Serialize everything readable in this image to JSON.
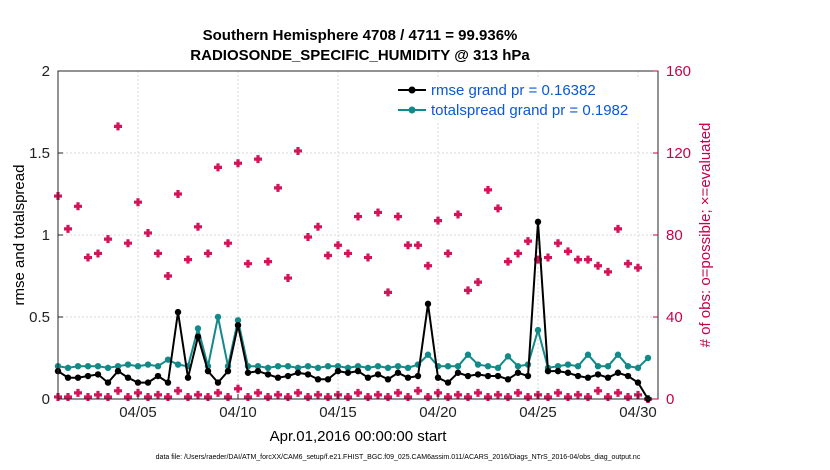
{
  "chart_data": {
    "type": "line",
    "title_line1": "Southern Hemisphere 4708 / 4711 = 99.936%",
    "title_line2": "RADIOSONDE_SPECIFIC_HUMIDITY @ 313 hPa",
    "xlabel": "Apr.01,2016 00:00:00 start",
    "ylabel_left": "rmse and totalspread",
    "ylabel_right": "# of obs: o=possible; ×=evaluated",
    "xlim": [
      1,
      31
    ],
    "ylim_left": [
      0,
      2
    ],
    "ylim_right": [
      0,
      160
    ],
    "x_ticks": [
      {
        "value": 5,
        "label": "04/05"
      },
      {
        "value": 10,
        "label": "04/10"
      },
      {
        "value": 15,
        "label": "04/15"
      },
      {
        "value": 20,
        "label": "04/20"
      },
      {
        "value": 25,
        "label": "04/25"
      },
      {
        "value": 30,
        "label": "04/30"
      }
    ],
    "y_ticks_left": [
      {
        "value": 0,
        "label": "0"
      },
      {
        "value": 0.5,
        "label": "0.5"
      },
      {
        "value": 1,
        "label": "1"
      },
      {
        "value": 1.5,
        "label": "1.5"
      },
      {
        "value": 2,
        "label": "2"
      }
    ],
    "y_ticks_right": [
      {
        "value": 0,
        "label": "0"
      },
      {
        "value": 40,
        "label": "40"
      },
      {
        "value": 80,
        "label": "80"
      },
      {
        "value": 120,
        "label": "120"
      },
      {
        "value": 160,
        "label": "160"
      }
    ],
    "grid": true,
    "legend_position": "top-right",
    "series": [
      {
        "name": "rmse grand pr = 0.16382",
        "color": "#000000",
        "axis": "left",
        "x": [
          1,
          1.5,
          2,
          2.5,
          3,
          3.5,
          4,
          4.5,
          5,
          5.5,
          6,
          6.5,
          7,
          7.5,
          8,
          8.5,
          9,
          9.5,
          10,
          10.5,
          11,
          11.5,
          12,
          12.5,
          13,
          13.5,
          14,
          14.5,
          15,
          15.5,
          16,
          16.5,
          17,
          17.5,
          18,
          18.5,
          19,
          19.5,
          20,
          20.5,
          21,
          21.5,
          22,
          22.5,
          23,
          23.5,
          24,
          24.5,
          25,
          25.5,
          26,
          26.5,
          27,
          27.5,
          28,
          28.5,
          29,
          29.5,
          30,
          30.5
        ],
        "values": [
          0.17,
          0.13,
          0.13,
          0.14,
          0.15,
          0.1,
          0.17,
          0.13,
          0.1,
          0.1,
          0.14,
          0.1,
          0.53,
          0.13,
          0.38,
          0.17,
          0.1,
          0.17,
          0.45,
          0.16,
          0.17,
          0.15,
          0.13,
          0.14,
          0.16,
          0.15,
          0.12,
          0.12,
          0.17,
          0.16,
          0.17,
          0.13,
          0.15,
          0.12,
          0.16,
          0.13,
          0.14,
          0.58,
          0.13,
          0.1,
          0.16,
          0.14,
          0.15,
          0.14,
          0.14,
          0.12,
          0.16,
          0.14,
          1.08,
          0.17,
          0.17,
          0.16,
          0.14,
          0.13,
          0.15,
          0.13,
          0.16,
          0.14,
          0.1,
          0.0
        ]
      },
      {
        "name": "totalspread grand pr = 0.1982",
        "color": "#138a8a",
        "axis": "left",
        "x": [
          1,
          1.5,
          2,
          2.5,
          3,
          3.5,
          4,
          4.5,
          5,
          5.5,
          6,
          6.5,
          7,
          7.5,
          8,
          8.5,
          9,
          9.5,
          10,
          10.5,
          11,
          11.5,
          12,
          12.5,
          13,
          13.5,
          14,
          14.5,
          15,
          15.5,
          16,
          16.5,
          17,
          17.5,
          18,
          18.5,
          19,
          19.5,
          20,
          20.5,
          21,
          21.5,
          22,
          22.5,
          23,
          23.5,
          24,
          24.5,
          25,
          25.5,
          26,
          26.5,
          27,
          27.5,
          28,
          28.5,
          29,
          29.5,
          30,
          30.5
        ],
        "values": [
          0.2,
          0.19,
          0.2,
          0.2,
          0.2,
          0.19,
          0.2,
          0.21,
          0.2,
          0.21,
          0.2,
          0.24,
          0.21,
          0.2,
          0.43,
          0.2,
          0.5,
          0.2,
          0.48,
          0.2,
          0.2,
          0.19,
          0.2,
          0.2,
          0.19,
          0.2,
          0.19,
          0.2,
          0.2,
          0.19,
          0.2,
          0.19,
          0.2,
          0.19,
          0.2,
          0.19,
          0.21,
          0.27,
          0.2,
          0.2,
          0.2,
          0.27,
          0.21,
          0.2,
          0.19,
          0.26,
          0.2,
          0.21,
          0.42,
          0.19,
          0.2,
          0.21,
          0.2,
          0.27,
          0.2,
          0.2,
          0.27,
          0.2,
          0.19,
          0.25
        ]
      },
      {
        "name": "possible",
        "color": "#d4145a",
        "axis": "right",
        "x": [
          1,
          1.5,
          2,
          2.5,
          3,
          3.5,
          4,
          4.5,
          5,
          5.5,
          6,
          6.5,
          7,
          7.5,
          8,
          8.5,
          9,
          9.5,
          10,
          10.5,
          11,
          11.5,
          12,
          12.5,
          13,
          13.5,
          14,
          14.5,
          15,
          15.5,
          16,
          16.5,
          17,
          17.5,
          18,
          18.5,
          19,
          19.5,
          20,
          20.5,
          21,
          21.5,
          22,
          22.5,
          23,
          23.5,
          24,
          24.5,
          25,
          25.5,
          26,
          26.5,
          27,
          27.5,
          28,
          28.5,
          29,
          29.5,
          30,
          30.5
        ],
        "values": [
          99,
          83,
          94,
          69,
          71,
          78,
          133,
          76,
          96,
          81,
          71,
          60,
          100,
          68,
          84,
          71,
          113,
          76,
          115,
          66,
          117,
          67,
          103,
          59,
          121,
          79,
          84,
          70,
          75,
          71,
          89,
          69,
          91,
          52,
          89,
          75,
          75,
          65,
          87,
          71,
          90,
          53,
          57,
          102,
          93,
          67,
          71,
          77,
          68,
          69,
          76,
          72,
          68,
          68,
          65,
          62,
          83,
          66,
          64,
          0
        ]
      },
      {
        "name": "evaluated",
        "color": "#d4145a",
        "axis": "right",
        "x": [
          1,
          1.5,
          2,
          2.5,
          3,
          3.5,
          4,
          4.5,
          5,
          5.5,
          6,
          6.5,
          7,
          7.5,
          8,
          8.5,
          9,
          9.5,
          10,
          10.5,
          11,
          11.5,
          12,
          12.5,
          13,
          13.5,
          14,
          14.5,
          15,
          15.5,
          16,
          16.5,
          17,
          17.5,
          18,
          18.5,
          19,
          19.5,
          20,
          20.5,
          21,
          21.5,
          22,
          22.5,
          23,
          23.5,
          24,
          24.5,
          25,
          25.5,
          26,
          26.5,
          27,
          27.5,
          28,
          28.5,
          29,
          29.5,
          30,
          30.5
        ],
        "values": [
          1,
          1,
          3,
          1,
          2,
          1,
          4,
          1,
          3,
          1,
          2,
          1,
          4,
          1,
          2,
          1,
          3,
          1,
          5,
          1,
          3,
          1,
          2,
          1,
          3,
          1,
          2,
          1,
          2,
          1,
          3,
          1,
          2,
          1,
          3,
          1,
          4,
          1,
          3,
          1,
          2,
          1,
          3,
          1,
          2,
          1,
          3,
          1,
          2,
          1,
          3,
          1,
          2,
          1,
          4,
          1,
          3,
          1,
          2,
          0
        ]
      }
    ],
    "footnote": "data file: /Users/raeder/DAI/ATM_forcXX/CAM6_setup/f.e21.FHIST_BGC.f09_025.CAM6assim.011/ACARS_2016/Diags_NTrS_2016-04/obs_diag_output.nc"
  }
}
